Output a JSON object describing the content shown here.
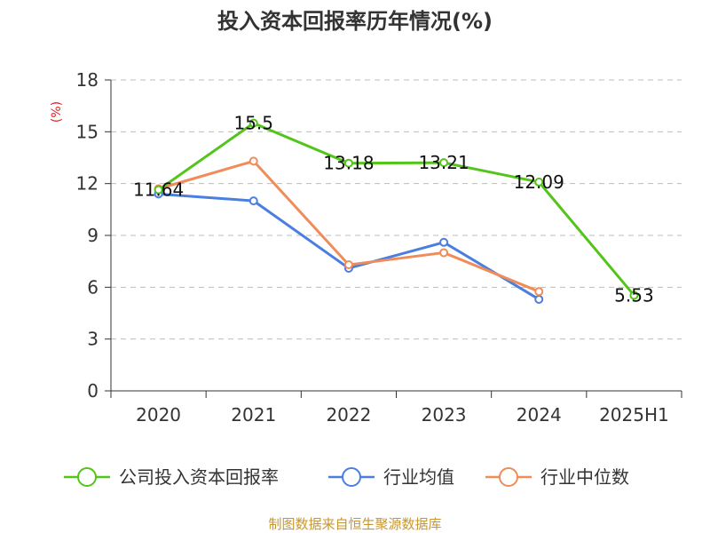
{
  "chart_data": {
    "type": "line",
    "title": "投入资本回报率历年情况(%)",
    "unit_label": "(%)",
    "categories": [
      "2020",
      "2021",
      "2022",
      "2023",
      "2024",
      "2025H1"
    ],
    "ylim": [
      0,
      18
    ],
    "yticks": [
      0,
      3,
      6,
      9,
      12,
      15,
      18
    ],
    "grid": true,
    "legend_position": "bottom",
    "series": [
      {
        "name": "公司投入资本回报率",
        "color": "#52c41a",
        "values": [
          11.64,
          15.5,
          13.18,
          13.21,
          12.09,
          5.53
        ],
        "labels": [
          "11.64",
          "15.5",
          "13.18",
          "13.21",
          "12.09",
          "5.53"
        ]
      },
      {
        "name": "行业均值",
        "color": "#4a7ee0",
        "values": [
          11.4,
          11.0,
          7.1,
          8.6,
          5.3,
          null
        ]
      },
      {
        "name": "行业中位数",
        "color": "#f08c5a",
        "values": [
          11.7,
          13.3,
          7.3,
          8.0,
          5.75,
          null
        ]
      }
    ],
    "source": "制图数据来自恒生聚源数据库"
  }
}
